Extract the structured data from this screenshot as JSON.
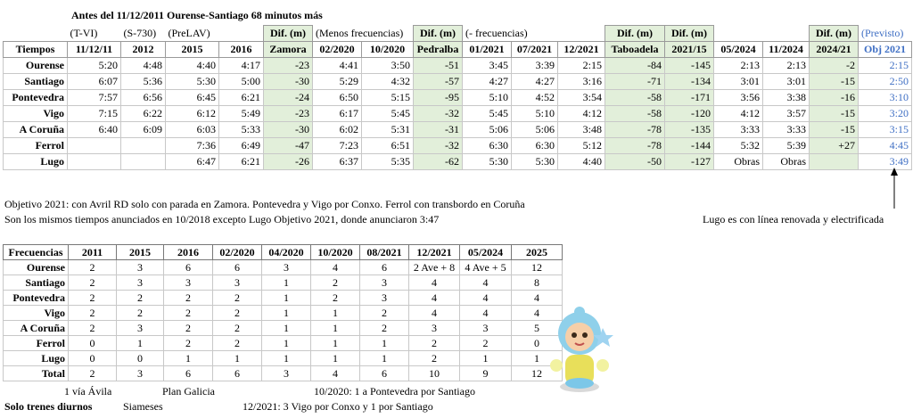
{
  "top": {
    "title": "Antes del 11/12/2011 Ourense-Santiago 68 minutos más",
    "subheader": [
      null,
      "(T-VI)",
      "(S-730)",
      "(PreLAV)",
      null,
      "Dif. (m)",
      "(Menos frecuencias)",
      null,
      "Dif. (m)",
      "(- frecuencias)",
      null,
      null,
      "Dif. (m)",
      "Dif. (m)",
      null,
      null,
      "Dif. (m)",
      "(Previsto)"
    ],
    "header": [
      "Tiempos",
      "11/12/11",
      "2012",
      "2015",
      "2016",
      "Zamora",
      "02/2020",
      "10/2020",
      "Pedralba",
      "01/2021",
      "07/2021",
      "12/2021",
      "Taboadela",
      "2021/15",
      "05/2024",
      "11/2024",
      "2024/21",
      "Obj 2021"
    ],
    "rows": [
      [
        "Ourense",
        "5:20",
        "4:48",
        "4:40",
        "4:17",
        "-23",
        "4:41",
        "3:50",
        "-51",
        "3:45",
        "3:39",
        "2:15",
        "-84",
        "-145",
        "2:13",
        "2:13",
        "-2",
        "2:15"
      ],
      [
        "Santiago",
        "6:07",
        "5:36",
        "5:30",
        "5:00",
        "-30",
        "5:29",
        "4:32",
        "-57",
        "4:27",
        "4:27",
        "3:16",
        "-71",
        "-134",
        "3:01",
        "3:01",
        "-15",
        "2:50"
      ],
      [
        "Pontevedra",
        "7:57",
        "6:56",
        "6:45",
        "6:21",
        "-24",
        "6:50",
        "5:15",
        "-95",
        "5:10",
        "4:52",
        "3:54",
        "-58",
        "-171",
        "3:56",
        "3:38",
        "-16",
        "3:10"
      ],
      [
        "Vigo",
        "7:15",
        "6:22",
        "6:12",
        "5:49",
        "-23",
        "6:17",
        "5:45",
        "-32",
        "5:45",
        "5:10",
        "4:12",
        "-58",
        "-120",
        "4:12",
        "3:57",
        "-15",
        "3:20"
      ],
      [
        "A Coruña",
        "6:40",
        "6:09",
        "6:03",
        "5:33",
        "-30",
        "6:02",
        "5:31",
        "-31",
        "5:06",
        "5:06",
        "3:48",
        "-78",
        "-135",
        "3:33",
        "3:33",
        "-15",
        "3:15"
      ],
      [
        "Ferrol",
        null,
        null,
        "7:36",
        "6:49",
        "-47",
        "7:23",
        "6:51",
        "-32",
        "6:30",
        "6:30",
        "5:12",
        "-78",
        "-144",
        "5:32",
        "5:39",
        "+27",
        "4:45"
      ],
      [
        "Lugo",
        null,
        null,
        "6:47",
        "6:21",
        "-26",
        "6:37",
        "5:35",
        "-62",
        "5:30",
        "5:30",
        "4:40",
        "-50",
        "-127",
        "Obras",
        "Obras",
        null,
        "3:49"
      ]
    ]
  },
  "notes": [
    "Objetivo 2021: con Avril RD solo con parada en Zamora. Pontevedra y Vigo por Conxo. Ferrol con transbordo en Coruña",
    "Son los mismos tiempos anunciados en 10/2018 excepto Lugo Objetivo 2021, donde anunciaron 3:47"
  ],
  "side_note": "Lugo es con línea renovada y electrificada",
  "freq": {
    "header": [
      "Frecuencias",
      "2011",
      "2015",
      "2016",
      "02/2020",
      "04/2020",
      "10/2020",
      "08/2021",
      "12/2021",
      "05/2024",
      "2025"
    ],
    "rows": [
      [
        "Ourense",
        "2",
        "3",
        "6",
        "6",
        "3",
        "4",
        "6",
        "2 Ave + 8",
        "4 Ave + 5",
        "12"
      ],
      [
        "Santiago",
        "2",
        "3",
        "3",
        "3",
        "1",
        "2",
        "3",
        "4",
        "4",
        "8"
      ],
      [
        "Pontevedra",
        "2",
        "2",
        "2",
        "2",
        "1",
        "2",
        "3",
        "4",
        "4",
        "4"
      ],
      [
        "Vigo",
        "2",
        "2",
        "2",
        "2",
        "1",
        "1",
        "2",
        "4",
        "4",
        "4"
      ],
      [
        "A Coruña",
        "2",
        "3",
        "2",
        "2",
        "1",
        "1",
        "2",
        "3",
        "3",
        "5"
      ],
      [
        "Ferrol",
        "0",
        "1",
        "2",
        "2",
        "1",
        "1",
        "1",
        "2",
        "2",
        "0"
      ],
      [
        "Lugo",
        "0",
        "0",
        "1",
        "1",
        "1",
        "1",
        "1",
        "2",
        "1",
        "1"
      ],
      [
        "Total",
        "2",
        "3",
        "6",
        "6",
        "3",
        "4",
        "6",
        "10",
        "9",
        "12"
      ]
    ]
  },
  "footer": {
    "a1": "1 vía Ávila",
    "a2": "Plan Galicia",
    "a3": "10/2020: 1 a Pontevedra por Santiago",
    "b1": "Solo trenes diurnos",
    "b2": "Siameses",
    "b3": "12/2021: 3 Vigo por Conxo y 1 por Santiago"
  }
}
